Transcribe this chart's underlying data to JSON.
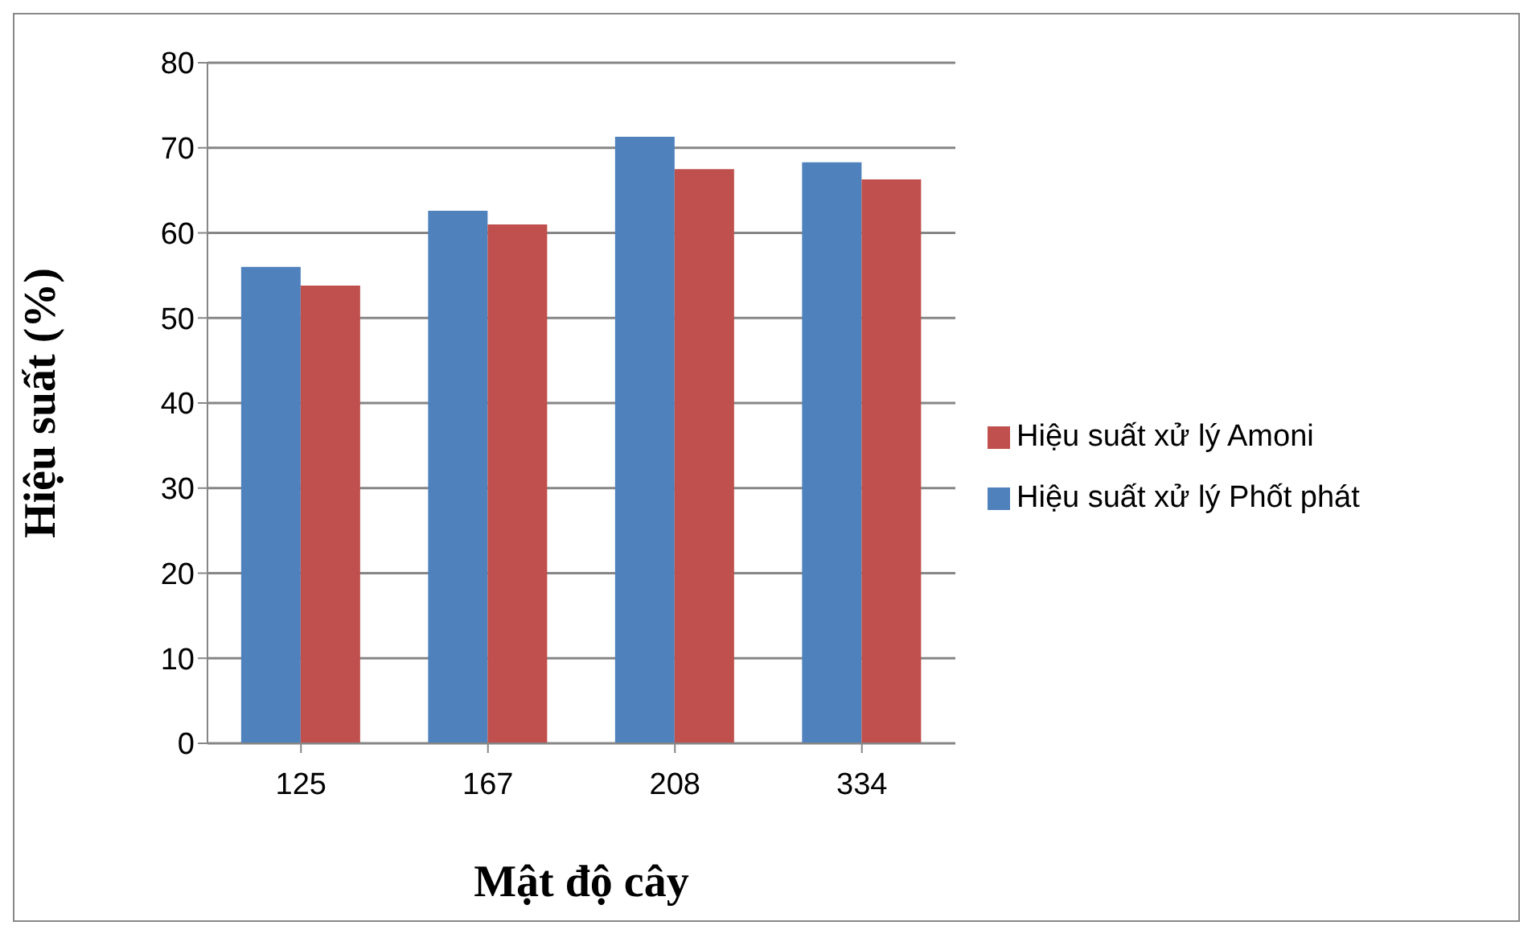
{
  "chart_data": {
    "type": "bar",
    "xlabel": "Mật độ cây",
    "ylabel": "Hiệu suất (%)",
    "categories": [
      "125",
      "167",
      "208",
      "334"
    ],
    "series": [
      {
        "name": "Hiệu suất xử lý Phốt phát",
        "color": "#4f81bd",
        "values": [
          56.0,
          62.6,
          71.3,
          68.3
        ]
      },
      {
        "name": "Hiệu suất xử lý Amoni",
        "color": "#c0504d",
        "values": [
          53.8,
          61.0,
          67.5,
          66.3
        ]
      }
    ],
    "ylim": [
      0,
      80
    ],
    "yticks": [
      0,
      10,
      20,
      30,
      40,
      50,
      60,
      70,
      80
    ],
    "grid": "y",
    "legend": "right"
  }
}
